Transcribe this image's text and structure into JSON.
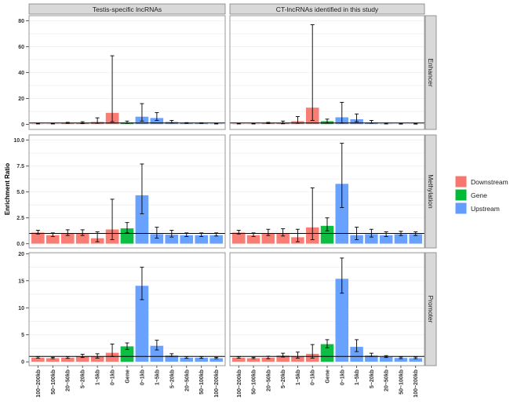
{
  "chart_data": {
    "type": "bar",
    "ylabel": "Enrichment Ratio",
    "xlabel": "",
    "reference_line": 1,
    "categories": [
      "100~200kb",
      "50~100kb",
      "20~50kb",
      "5~20kb",
      "1~5kb",
      "0~1kb",
      "Gene",
      "0~1kb",
      "1~5kb",
      "5~20kb",
      "20~50kb",
      "50~100kb",
      "100~200kb"
    ],
    "groups": [
      "Downstream",
      "Downstream",
      "Downstream",
      "Downstream",
      "Downstream",
      "Downstream",
      "Gene",
      "Upstream",
      "Upstream",
      "Upstream",
      "Upstream",
      "Upstream",
      "Upstream"
    ],
    "legend": [
      {
        "label": "Downstream",
        "color": "#F8766D"
      },
      {
        "label": "Gene",
        "color": "#00BA38"
      },
      {
        "label": "Upstream",
        "color": "#619CFF"
      }
    ],
    "legend_position": "right",
    "columns": [
      "Testis-specific lncRNAs",
      "CT-lncRNAs identified in this study"
    ],
    "rows": [
      {
        "name": "Enhancer",
        "ylim": [
          -4,
          84
        ],
        "ticks": [
          0,
          20,
          40,
          60,
          80
        ],
        "tick_labels": [
          "0",
          "20",
          "40",
          "60",
          "80"
        ],
        "panels": [
          {
            "values": [
              0.5,
              0.5,
              1,
              1,
              2,
              9,
              1.5,
              6,
              5,
              2,
              1,
              1,
              0.5
            ],
            "err_low": [
              0.3,
              0.3,
              0.7,
              0.5,
              0.8,
              2,
              0.8,
              2.5,
              3,
              1,
              0.7,
              0.7,
              0.3
            ],
            "err_high": [
              0.8,
              0.8,
              1.5,
              2,
              5,
              53,
              2.5,
              16,
              9,
              3,
              1.3,
              1.2,
              0.8
            ]
          },
          {
            "values": [
              0.5,
              0.5,
              1,
              1,
              2.5,
              13,
              2.5,
              5.5,
              4,
              1.5,
              0.5,
              0.3,
              0.3
            ],
            "err_low": [
              0.3,
              0.3,
              0.6,
              0.4,
              0.8,
              3,
              1,
              1,
              2,
              0.8,
              0.3,
              0.2,
              0.2
            ],
            "err_high": [
              0.8,
              0.8,
              1.5,
              2.5,
              6,
              77,
              4,
              17,
              8,
              3,
              1,
              0.5,
              0.5
            ]
          }
        ]
      },
      {
        "name": "Methylation",
        "ylim": [
          -0.4,
          10.5
        ],
        "ticks": [
          0,
          2.5,
          5,
          7.5,
          10
        ],
        "tick_labels": [
          "0.0",
          "2.5",
          "5.0",
          "7.5",
          "10.0"
        ],
        "panels": [
          {
            "values": [
              1.1,
              0.85,
              1.05,
              1.0,
              0.55,
              1.4,
              1.5,
              4.7,
              0.95,
              0.9,
              0.85,
              0.85,
              0.85
            ],
            "err_low": [
              0.95,
              0.7,
              0.8,
              0.8,
              0.2,
              0.4,
              1.05,
              2.9,
              0.55,
              0.65,
              0.7,
              0.7,
              0.75
            ],
            "err_high": [
              1.3,
              1.05,
              1.35,
              1.35,
              1.15,
              4.3,
              2.05,
              7.7,
              1.6,
              1.3,
              1.05,
              1.05,
              1.05
            ]
          },
          {
            "values": [
              1.1,
              0.85,
              1.05,
              1.05,
              0.65,
              1.6,
              1.75,
              5.8,
              0.85,
              0.95,
              0.85,
              0.95,
              0.95
            ],
            "err_low": [
              0.95,
              0.7,
              0.8,
              0.75,
              0.2,
              0.4,
              1.25,
              3.5,
              0.4,
              0.65,
              0.7,
              0.8,
              0.8
            ],
            "err_high": [
              1.3,
              1.05,
              1.4,
              1.45,
              1.4,
              5.4,
              2.5,
              9.7,
              1.6,
              1.4,
              1.15,
              1.2,
              1.15
            ]
          }
        ]
      },
      {
        "name": "Promoter",
        "ylim": [
          -0.7,
          20.2
        ],
        "ticks": [
          0,
          5,
          10,
          15,
          20
        ],
        "tick_labels": [
          "0",
          "5",
          "10",
          "15",
          "20"
        ],
        "panels": [
          {
            "values": [
              0.8,
              0.7,
              0.8,
              1.0,
              1.0,
              1.7,
              2.9,
              14.1,
              3.0,
              1.2,
              0.8,
              0.8,
              0.7
            ],
            "err_low": [
              0.7,
              0.6,
              0.65,
              0.8,
              0.7,
              1.0,
              2.3,
              11.5,
              2.2,
              1.0,
              0.65,
              0.65,
              0.6
            ],
            "err_high": [
              0.95,
              0.85,
              0.95,
              1.4,
              1.5,
              3.3,
              3.5,
              17.5,
              4.0,
              1.5,
              0.95,
              0.95,
              0.85
            ]
          },
          {
            "values": [
              0.8,
              0.7,
              0.8,
              1.2,
              1.1,
              1.5,
              3.3,
              15.4,
              2.8,
              1.2,
              0.95,
              0.75,
              0.7
            ],
            "err_low": [
              0.7,
              0.6,
              0.6,
              0.9,
              0.7,
              0.7,
              2.6,
              12.7,
              1.9,
              1.0,
              0.8,
              0.6,
              0.6
            ],
            "err_high": [
              0.95,
              0.85,
              1.05,
              1.6,
              1.8,
              3.2,
              4.1,
              19.2,
              4.1,
              1.6,
              1.15,
              0.9,
              0.9
            ]
          }
        ]
      }
    ]
  }
}
